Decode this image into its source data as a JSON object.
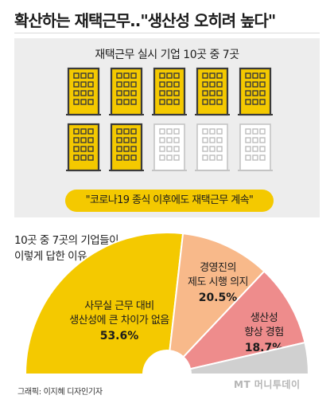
{
  "headline": "확산하는 재택근무..\"생산성 오히려 높다\"",
  "panel": {
    "title": "재택근무 실시 기업 10곳 중 7곳",
    "buildings_total": 10,
    "buildings_highlighted": 7,
    "quote": "\"코로나19 종식 이후에도 재택근무 계속\""
  },
  "chart_caption_lines": [
    "10곳 중 7곳의 기업들이",
    "이렇게 답한 이유"
  ],
  "chart_data": {
    "type": "pie",
    "subtype": "half-donut",
    "slices": [
      {
        "label_lines": [
          "사무실 근무 대비",
          "생산성에 큰 차이가 없음"
        ],
        "value_label": "53.6%",
        "value": 53.6,
        "color": "#f4c900"
      },
      {
        "label_lines": [
          "경영진의",
          "제도 시행 의지"
        ],
        "value_label": "20.5%",
        "value": 20.5,
        "color": "#f8b98a"
      },
      {
        "label_lines": [
          "생산성",
          "향상 경험"
        ],
        "value_label": "18.7%",
        "value": 18.7,
        "color": "#ee8c8c"
      },
      {
        "label_lines": [],
        "value_label": "",
        "value": 7.2,
        "color": "#d0d0d0"
      }
    ]
  },
  "colors": {
    "accent": "#f4c900",
    "panel_bg": "#ededed",
    "building_outline": "#6e6e6e"
  },
  "credit": "그래픽: 이지혜 디자인기자",
  "logo": "MT 머니투데이"
}
